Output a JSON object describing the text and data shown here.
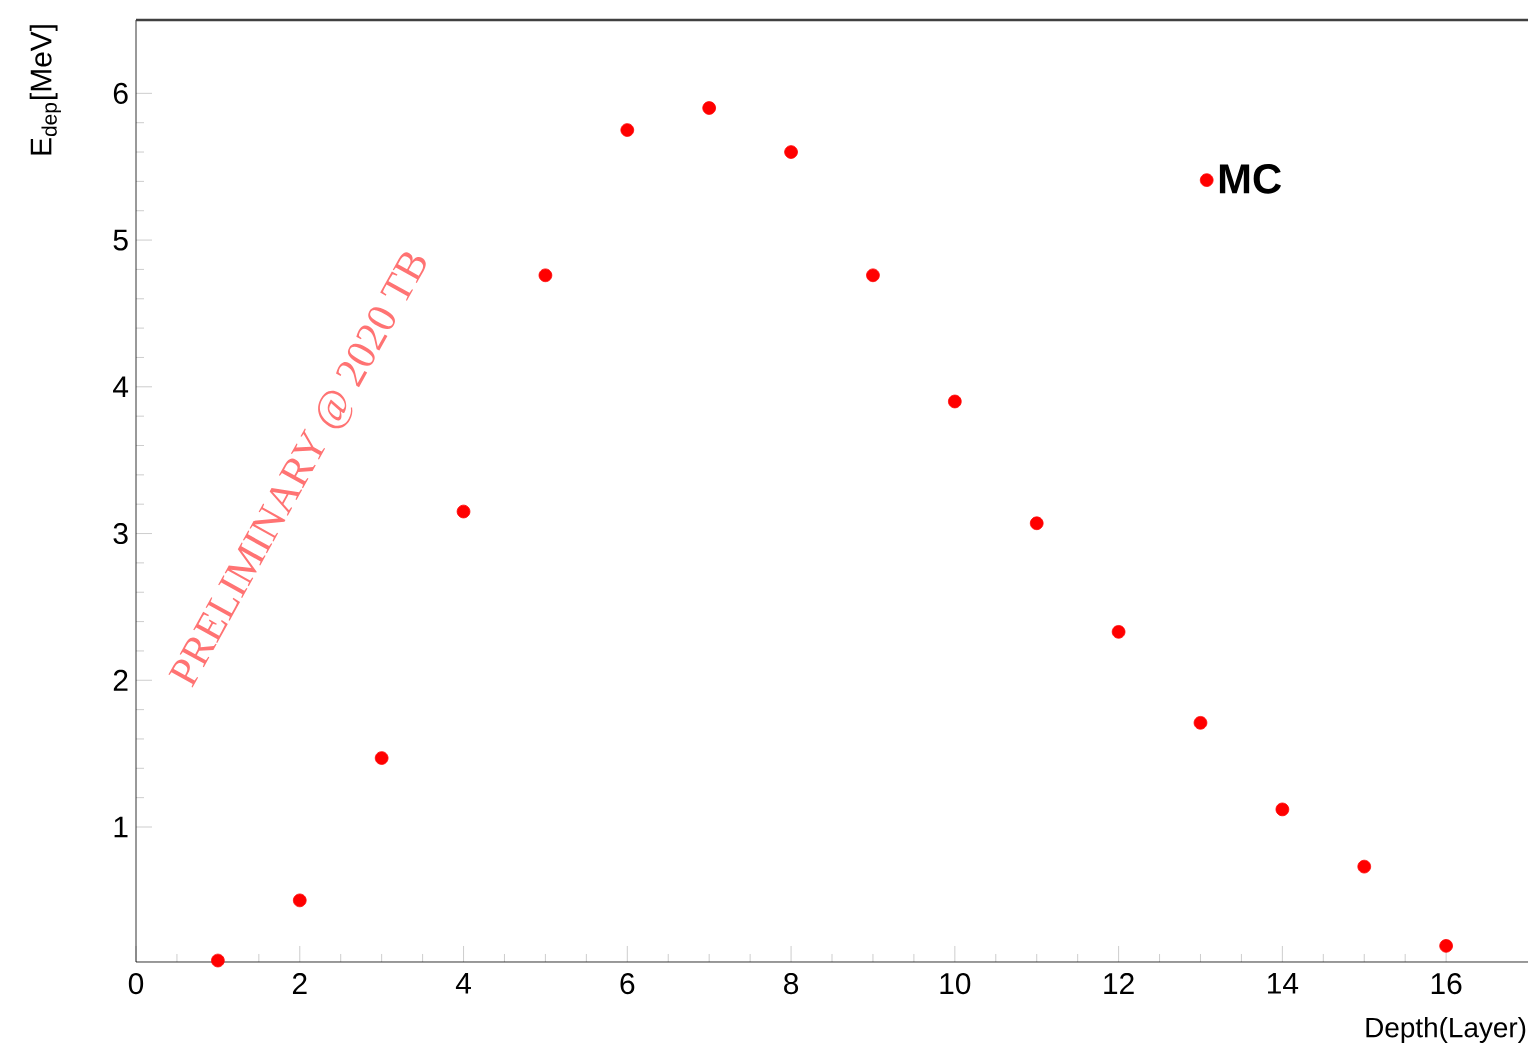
{
  "chart_data": {
    "type": "scatter",
    "xlabel": "Depth(Layer)",
    "ylabel": "E$_{dep}$[MeV]",
    "annotations": [
      "PRELIMINARY @ 2020 TB"
    ],
    "x": [
      1,
      2,
      3,
      4,
      5,
      6,
      7,
      8,
      9,
      10,
      11,
      12,
      13,
      14,
      15,
      16
    ],
    "series": [
      {
        "name": "MC",
        "color": "#ff0000",
        "values": [
          0.09,
          0.5,
          1.47,
          3.15,
          4.76,
          5.75,
          5.9,
          5.6,
          4.76,
          3.9,
          3.07,
          2.33,
          1.71,
          1.12,
          0.73,
          0.19
        ]
      }
    ],
    "xlim": [
      0,
      17
    ],
    "ylim": [
      0.08,
      6.5
    ],
    "xticks": [
      0,
      2,
      4,
      6,
      8,
      10,
      12,
      14,
      16
    ],
    "yticks": [
      1,
      2,
      3,
      4,
      5,
      6
    ],
    "marker": "circle",
    "legend": "top right",
    "grid": false
  }
}
